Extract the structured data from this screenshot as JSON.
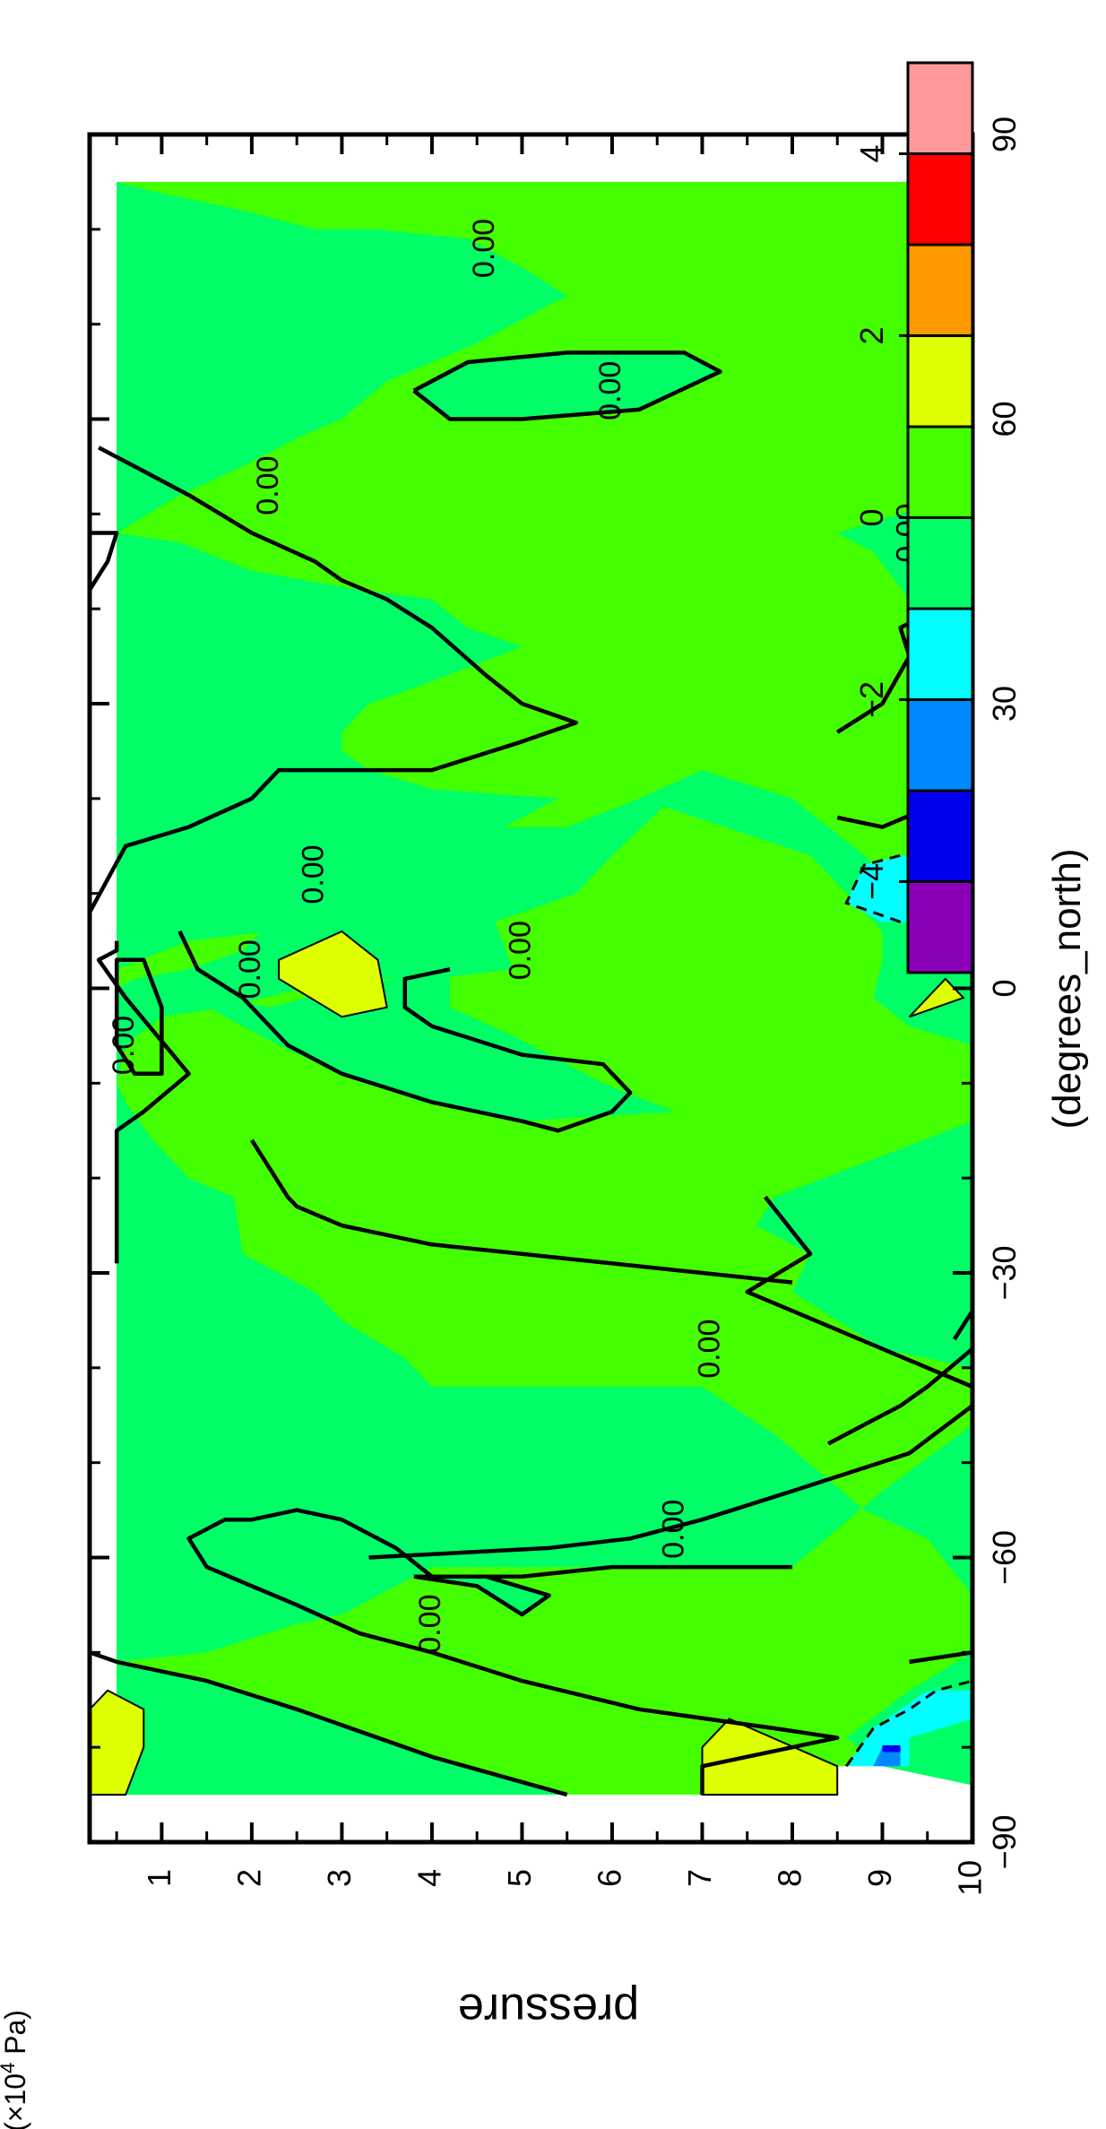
{
  "chart_data": {
    "type": "heatmap",
    "subtype": "filled-contour",
    "orientation": "rotated-90-clockwise",
    "title": "",
    "x_axis": {
      "label": "(degrees_north)",
      "ticks": [
        -90,
        -60,
        -30,
        0,
        30,
        60,
        90
      ],
      "tick_labels": [
        "−90",
        "−60",
        "−30",
        "0",
        "30",
        "60",
        "90"
      ],
      "range": [
        -90,
        90
      ]
    },
    "y_axis": {
      "label": "pressure",
      "unit_prefix": "(×10",
      "unit_exponent": "4",
      "unit_suffix": " Pa)",
      "ticks": [
        1,
        2,
        3,
        4,
        5,
        6,
        7,
        8,
        9,
        10
      ],
      "tick_labels": [
        "1",
        "2",
        "3",
        "4",
        "5",
        "6",
        "7",
        "8",
        "9",
        "10"
      ],
      "range": [
        0.2,
        10
      ],
      "inverted": true
    },
    "data_extent": {
      "lat": [
        -85,
        85
      ],
      "pressure": [
        0.5,
        10
      ]
    },
    "colorbar": {
      "levels": [
        -5,
        -4,
        -3,
        -2,
        -1,
        0,
        1,
        2,
        3,
        4,
        5
      ],
      "colors": [
        "#8a00b8",
        "#0000ee",
        "#0088ff",
        "#00ffff",
        "#00ff66",
        "#44ff00",
        "#ddff00",
        "#ff9900",
        "#ff0000",
        "#ff9999"
      ],
      "tick_values": [
        4,
        2,
        0,
        -2,
        -4
      ],
      "tick_labels": [
        "4",
        "2",
        "0",
        "−2",
        "−4"
      ]
    },
    "contour_labels": [
      {
        "text": "0.00",
        "lat": -57,
        "p": 6.7
      },
      {
        "text": "0.00",
        "lat": -67,
        "p": 4.0
      },
      {
        "text": "0.00",
        "lat": -38,
        "p": 7.1
      },
      {
        "text": "0.00",
        "lat": -6,
        "p": 0.6
      },
      {
        "text": "0.00",
        "lat": 2,
        "p": 2.0
      },
      {
        "text": "0.00",
        "lat": 4,
        "p": 5.0
      },
      {
        "text": "0.00",
        "lat": 12,
        "p": 2.7
      },
      {
        "text": "0.00",
        "lat": 53,
        "p": 2.2
      },
      {
        "text": "0.00",
        "lat": 63,
        "p": 6.0
      },
      {
        "text": "0.00",
        "lat": 78,
        "p": 4.6
      },
      {
        "text": "0.00",
        "lat": 48,
        "p": 9.3
      }
    ],
    "grid": false,
    "legend_position": "right (colorbar)"
  }
}
